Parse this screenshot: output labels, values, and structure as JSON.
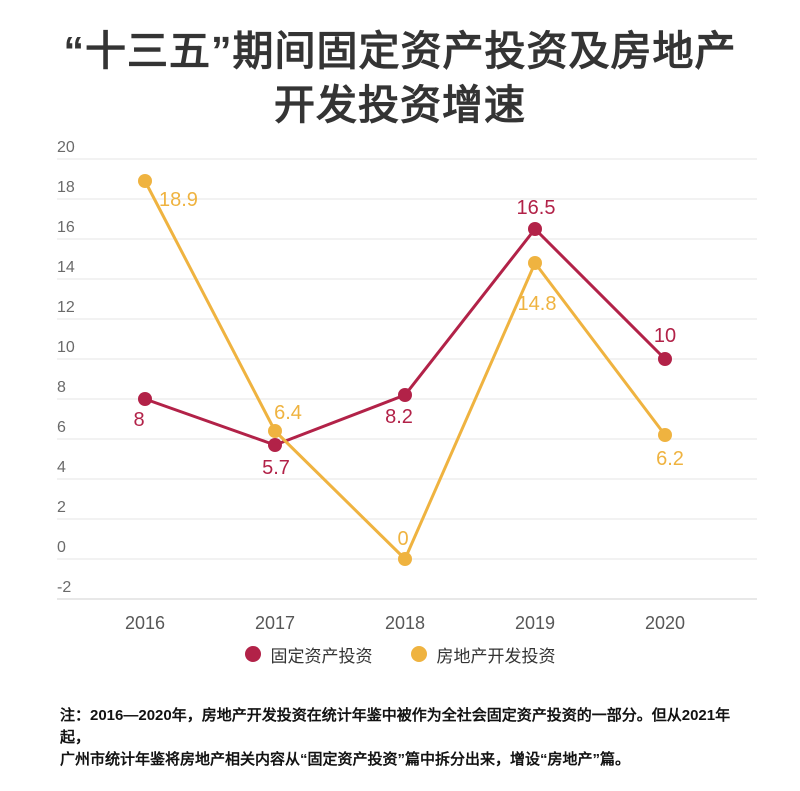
{
  "title": {
    "lines": [
      "“十三五”期间固定资产投资及房地产",
      "开发投资增速"
    ]
  },
  "chart_data": {
    "type": "line",
    "categories": [
      "2016",
      "2017",
      "2018",
      "2019",
      "2020"
    ],
    "series": [
      {
        "name": "固定资产投资",
        "color": "#b22248",
        "values": [
          8,
          5.7,
          8.2,
          16.5,
          10
        ]
      },
      {
        "name": "房地产开发投资",
        "color": "#efb340",
        "values": [
          18.9,
          6.4,
          0,
          14.8,
          6.2
        ]
      }
    ],
    "ylim": [
      -2,
      20
    ],
    "yticks": [
      -2,
      0,
      2,
      4,
      6,
      8,
      10,
      12,
      14,
      16,
      18,
      20
    ],
    "grid": true,
    "legend_position": "bottom",
    "colors": {
      "grid_line": "#e4e4e4",
      "bottom_line": "#d2d2d2",
      "ytick_text": "#6a6a6a",
      "xtick_text": "#575757"
    }
  },
  "note": {
    "lines": [
      "注：2016—2020年，房地产开发投资在统计年鉴中被作为全社会固定资产投资的一部分。但从2021年起，",
      "广州市统计年鉴将房地产相关内容从“固定资产投资”篇中拆分出来，增设“房地产”篇。"
    ]
  }
}
